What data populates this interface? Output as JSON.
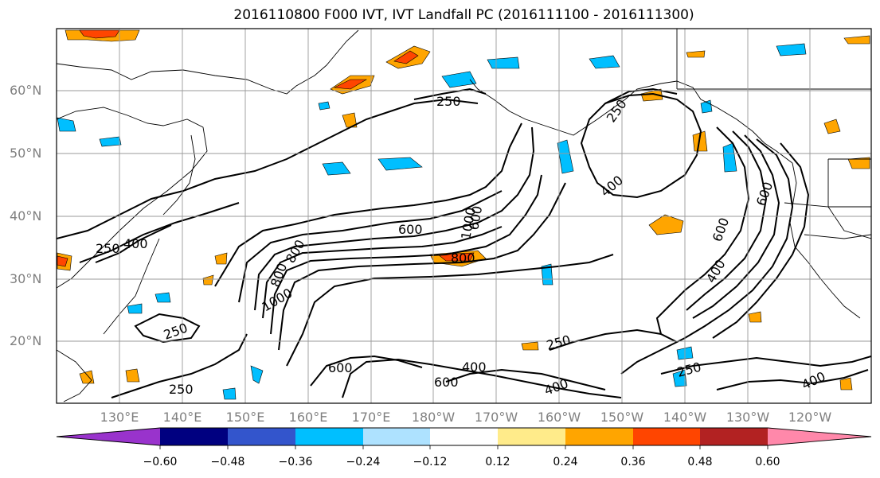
{
  "title": "2016110800 F000 IVT, IVT Landfall PC (2016111100 - 2016111300)",
  "map": {
    "region": "North Pacific",
    "projection": "PlateCarree",
    "lat_labels": [
      "60°N",
      "50°N",
      "40°N",
      "30°N",
      "20°N"
    ],
    "lon_labels": [
      "130°E",
      "140°E",
      "150°E",
      "160°E",
      "170°E",
      "180°W",
      "170°W",
      "160°W",
      "150°W",
      "140°W",
      "130°W",
      "120°W"
    ],
    "gridlines": true,
    "gridline_color": "#999999",
    "contour_line_color": "#000000",
    "contour_labels": [
      "250",
      "250",
      "250",
      "250",
      "250",
      "250",
      "250",
      "400",
      "400",
      "400",
      "400",
      "400",
      "400",
      "600",
      "600",
      "600",
      "600",
      "600",
      "600",
      "800",
      "800",
      "1000",
      "800",
      "1000"
    ]
  },
  "colorbar": {
    "ticks": [
      "−0.60",
      "−0.48",
      "−0.36",
      "−0.24",
      "−0.12",
      "0.12",
      "0.24",
      "0.36",
      "0.48",
      "0.60"
    ],
    "colors": [
      "#9933cc",
      "#000080",
      "#3355cc",
      "#00bfff",
      "#aee2ff",
      "#ffffff",
      "#ffeb8a",
      "#ffa500",
      "#ff4500",
      "#b22222",
      "#ff88aa"
    ],
    "extend": "both"
  }
}
